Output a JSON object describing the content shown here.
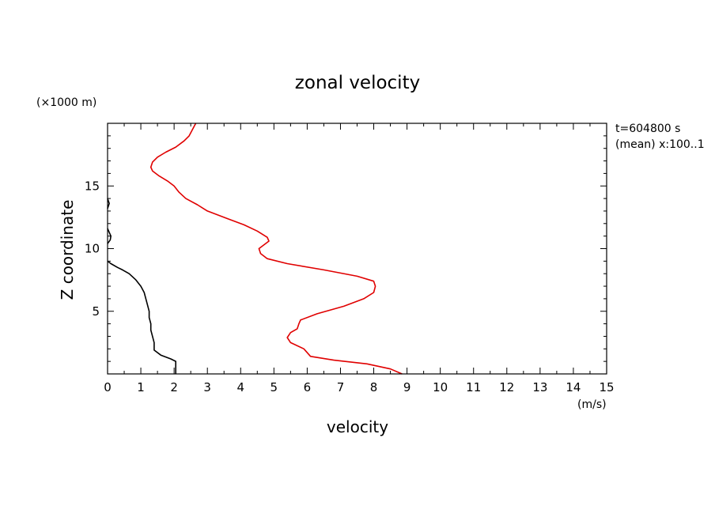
{
  "chart_data": {
    "type": "line",
    "title": "zonal velocity",
    "xlabel": "velocity",
    "ylabel": "Z coordinate",
    "x_units": "(m/s)",
    "y_units": "(×1000 m)",
    "xlim": [
      0,
      15
    ],
    "ylim": [
      0,
      20
    ],
    "x_ticks": [
      "0",
      "1",
      "2",
      "3",
      "4",
      "5",
      "6",
      "7",
      "8",
      "9",
      "10",
      "11",
      "12",
      "13",
      "14",
      "15"
    ],
    "y_ticks": [
      "5",
      "10",
      "15"
    ],
    "annotations": [
      "t=604800 s",
      "(mean) x:100..1"
    ],
    "grid": false,
    "series": [
      {
        "color": "#e00000",
        "x": [
          8.85,
          8.5,
          7.8,
          6.8,
          6.1,
          5.9,
          5.5,
          5.4,
          5.5,
          5.7,
          5.75,
          5.8,
          6.3,
          7.1,
          7.7,
          8.0,
          8.05,
          8.0,
          7.5,
          6.5,
          5.4,
          4.8,
          4.6,
          4.55,
          4.7,
          4.85,
          4.8,
          4.5,
          4.1,
          3.6,
          3.0,
          2.7,
          2.35,
          2.15,
          2.0,
          1.8,
          1.55,
          1.35,
          1.3,
          1.35,
          1.5,
          1.75,
          2.05,
          2.3,
          2.45,
          2.65
        ],
        "y": [
          0.0,
          0.4,
          0.8,
          1.1,
          1.4,
          2.0,
          2.5,
          2.9,
          3.3,
          3.6,
          4.0,
          4.3,
          4.8,
          5.4,
          6.0,
          6.5,
          7.0,
          7.4,
          7.8,
          8.3,
          8.8,
          9.2,
          9.6,
          10.0,
          10.3,
          10.6,
          10.9,
          11.4,
          11.9,
          12.4,
          13.0,
          13.5,
          14.0,
          14.5,
          15.0,
          15.4,
          15.8,
          16.2,
          16.5,
          16.9,
          17.3,
          17.7,
          18.1,
          18.6,
          19.0,
          20.0
        ]
      },
      {
        "color": "#000000",
        "x": [
          2.05,
          2.05,
          1.9,
          1.6,
          1.4,
          1.4,
          1.35,
          1.3,
          1.3,
          1.25,
          1.25,
          1.2,
          1.15,
          1.1,
          1.0,
          0.85,
          0.65,
          0.45,
          0.3,
          0.1,
          0.0
        ],
        "y": [
          0.0,
          1.0,
          1.2,
          1.5,
          1.9,
          2.5,
          3.0,
          3.5,
          4.0,
          4.5,
          5.0,
          5.5,
          6.0,
          6.5,
          7.0,
          7.5,
          8.0,
          8.3,
          8.5,
          8.8,
          9.0
        ]
      },
      {
        "color": "#000000",
        "x": [
          0.0,
          0.08,
          0.1,
          0.05,
          0.0
        ],
        "y": [
          10.4,
          10.7,
          11.0,
          11.3,
          11.6
        ]
      },
      {
        "color": "#000000",
        "x": [
          0.0,
          0.05,
          0.0
        ],
        "y": [
          13.2,
          13.6,
          14.0
        ]
      }
    ]
  }
}
